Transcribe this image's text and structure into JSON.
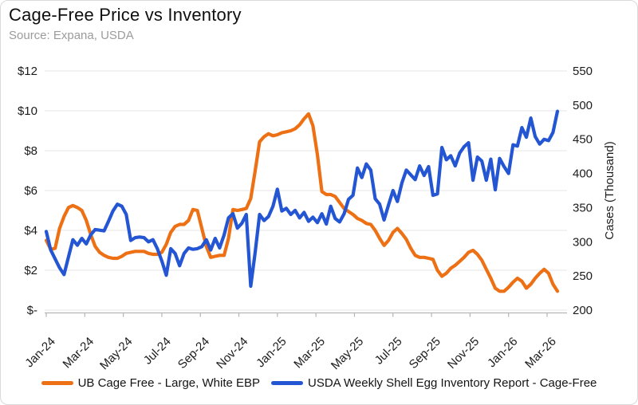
{
  "header": {
    "title": "Cage-Free Price vs Inventory",
    "source": "Source: Expana, USDA"
  },
  "chart_data": {
    "type": "line",
    "title": "Cage-Free Price vs Inventory",
    "x_unit": "weekly",
    "x_range": "Jan-2024 to Mar-2026",
    "grid": true,
    "legend_position": "bottom",
    "x_tick_labels": [
      "Jan-24",
      "Mar-24",
      "May-24",
      "Jul-24",
      "Sep-24",
      "Nov-24",
      "Jan-25",
      "Mar-25",
      "May-25",
      "Jul-25",
      "Sep-25",
      "Nov-25",
      "Jan-26",
      "Mar-26"
    ],
    "left_axis": {
      "min": 0,
      "max": 12,
      "tick_labels": [
        "$12",
        "$10",
        "$8",
        "$6",
        "$4",
        "$2",
        "$-"
      ]
    },
    "right_axis": {
      "label": "Cases (Thousand)",
      "min": 200,
      "max": 550,
      "tick_labels": [
        "550",
        "500",
        "450",
        "400",
        "350",
        "300",
        "250",
        "200"
      ]
    },
    "series": [
      {
        "name": "UB Cage Free - Large, White EBP",
        "axis": "left",
        "color": "#ED7014",
        "values": [
          3.5,
          3.05,
          3.1,
          4.1,
          4.7,
          5.15,
          5.25,
          5.15,
          5.0,
          4.5,
          3.8,
          3.2,
          2.9,
          2.75,
          2.65,
          2.6,
          2.6,
          2.7,
          2.85,
          2.9,
          2.95,
          2.95,
          2.95,
          2.85,
          2.8,
          2.8,
          2.9,
          3.3,
          3.9,
          4.2,
          4.3,
          4.3,
          4.5,
          5.05,
          5.0,
          4.1,
          3.2,
          2.65,
          2.7,
          2.75,
          2.75,
          3.6,
          5.05,
          5.0,
          5.05,
          5.1,
          5.6,
          7.0,
          8.45,
          8.7,
          8.85,
          8.75,
          8.8,
          8.9,
          8.95,
          9.0,
          9.1,
          9.3,
          9.6,
          9.85,
          9.25,
          7.8,
          5.95,
          5.8,
          5.8,
          5.7,
          5.4,
          5.1,
          4.95,
          4.8,
          4.6,
          4.5,
          4.35,
          4.3,
          4.0,
          3.6,
          3.25,
          3.5,
          3.9,
          4.1,
          3.85,
          3.55,
          3.1,
          2.75,
          2.65,
          2.65,
          2.6,
          2.55,
          2.0,
          1.7,
          1.85,
          2.1,
          2.25,
          2.45,
          2.65,
          2.9,
          3.0,
          2.8,
          2.5,
          2.05,
          1.6,
          1.1,
          0.95,
          0.95,
          1.15,
          1.4,
          1.6,
          1.45,
          1.1,
          1.3,
          1.6,
          1.85,
          2.05,
          1.85,
          1.3,
          0.95
        ]
      },
      {
        "name": "USDA Weekly Shell Egg Inventory Report - Cage-Free",
        "axis": "right",
        "color": "#2456D4",
        "values": [
          315,
          288,
          275,
          262,
          252,
          278,
          303,
          295,
          305,
          297,
          310,
          318,
          317,
          316,
          330,
          345,
          355,
          352,
          340,
          302,
          306,
          307,
          306,
          300,
          303,
          290,
          272,
          251,
          290,
          283,
          265,
          283,
          291,
          289,
          290,
          293,
          303,
          288,
          305,
          291,
          310,
          335,
          341,
          320,
          327,
          340,
          235,
          285,
          340,
          331,
          337,
          352,
          377,
          345,
          349,
          340,
          346,
          335,
          343,
          330,
          336,
          328,
          341,
          326,
          352,
          334,
          329,
          341,
          362,
          368,
          408,
          394,
          414,
          405,
          363,
          355,
          332,
          354,
          375,
          359,
          386,
          405,
          398,
          391,
          411,
          397,
          410,
          368,
          370,
          438,
          420,
          426,
          411,
          430,
          439,
          445,
          390,
          424,
          418,
          390,
          421,
          376,
          422,
          410,
          400,
          442,
          440,
          467,
          453,
          481,
          454,
          443,
          450,
          448,
          460,
          491
        ]
      }
    ]
  }
}
